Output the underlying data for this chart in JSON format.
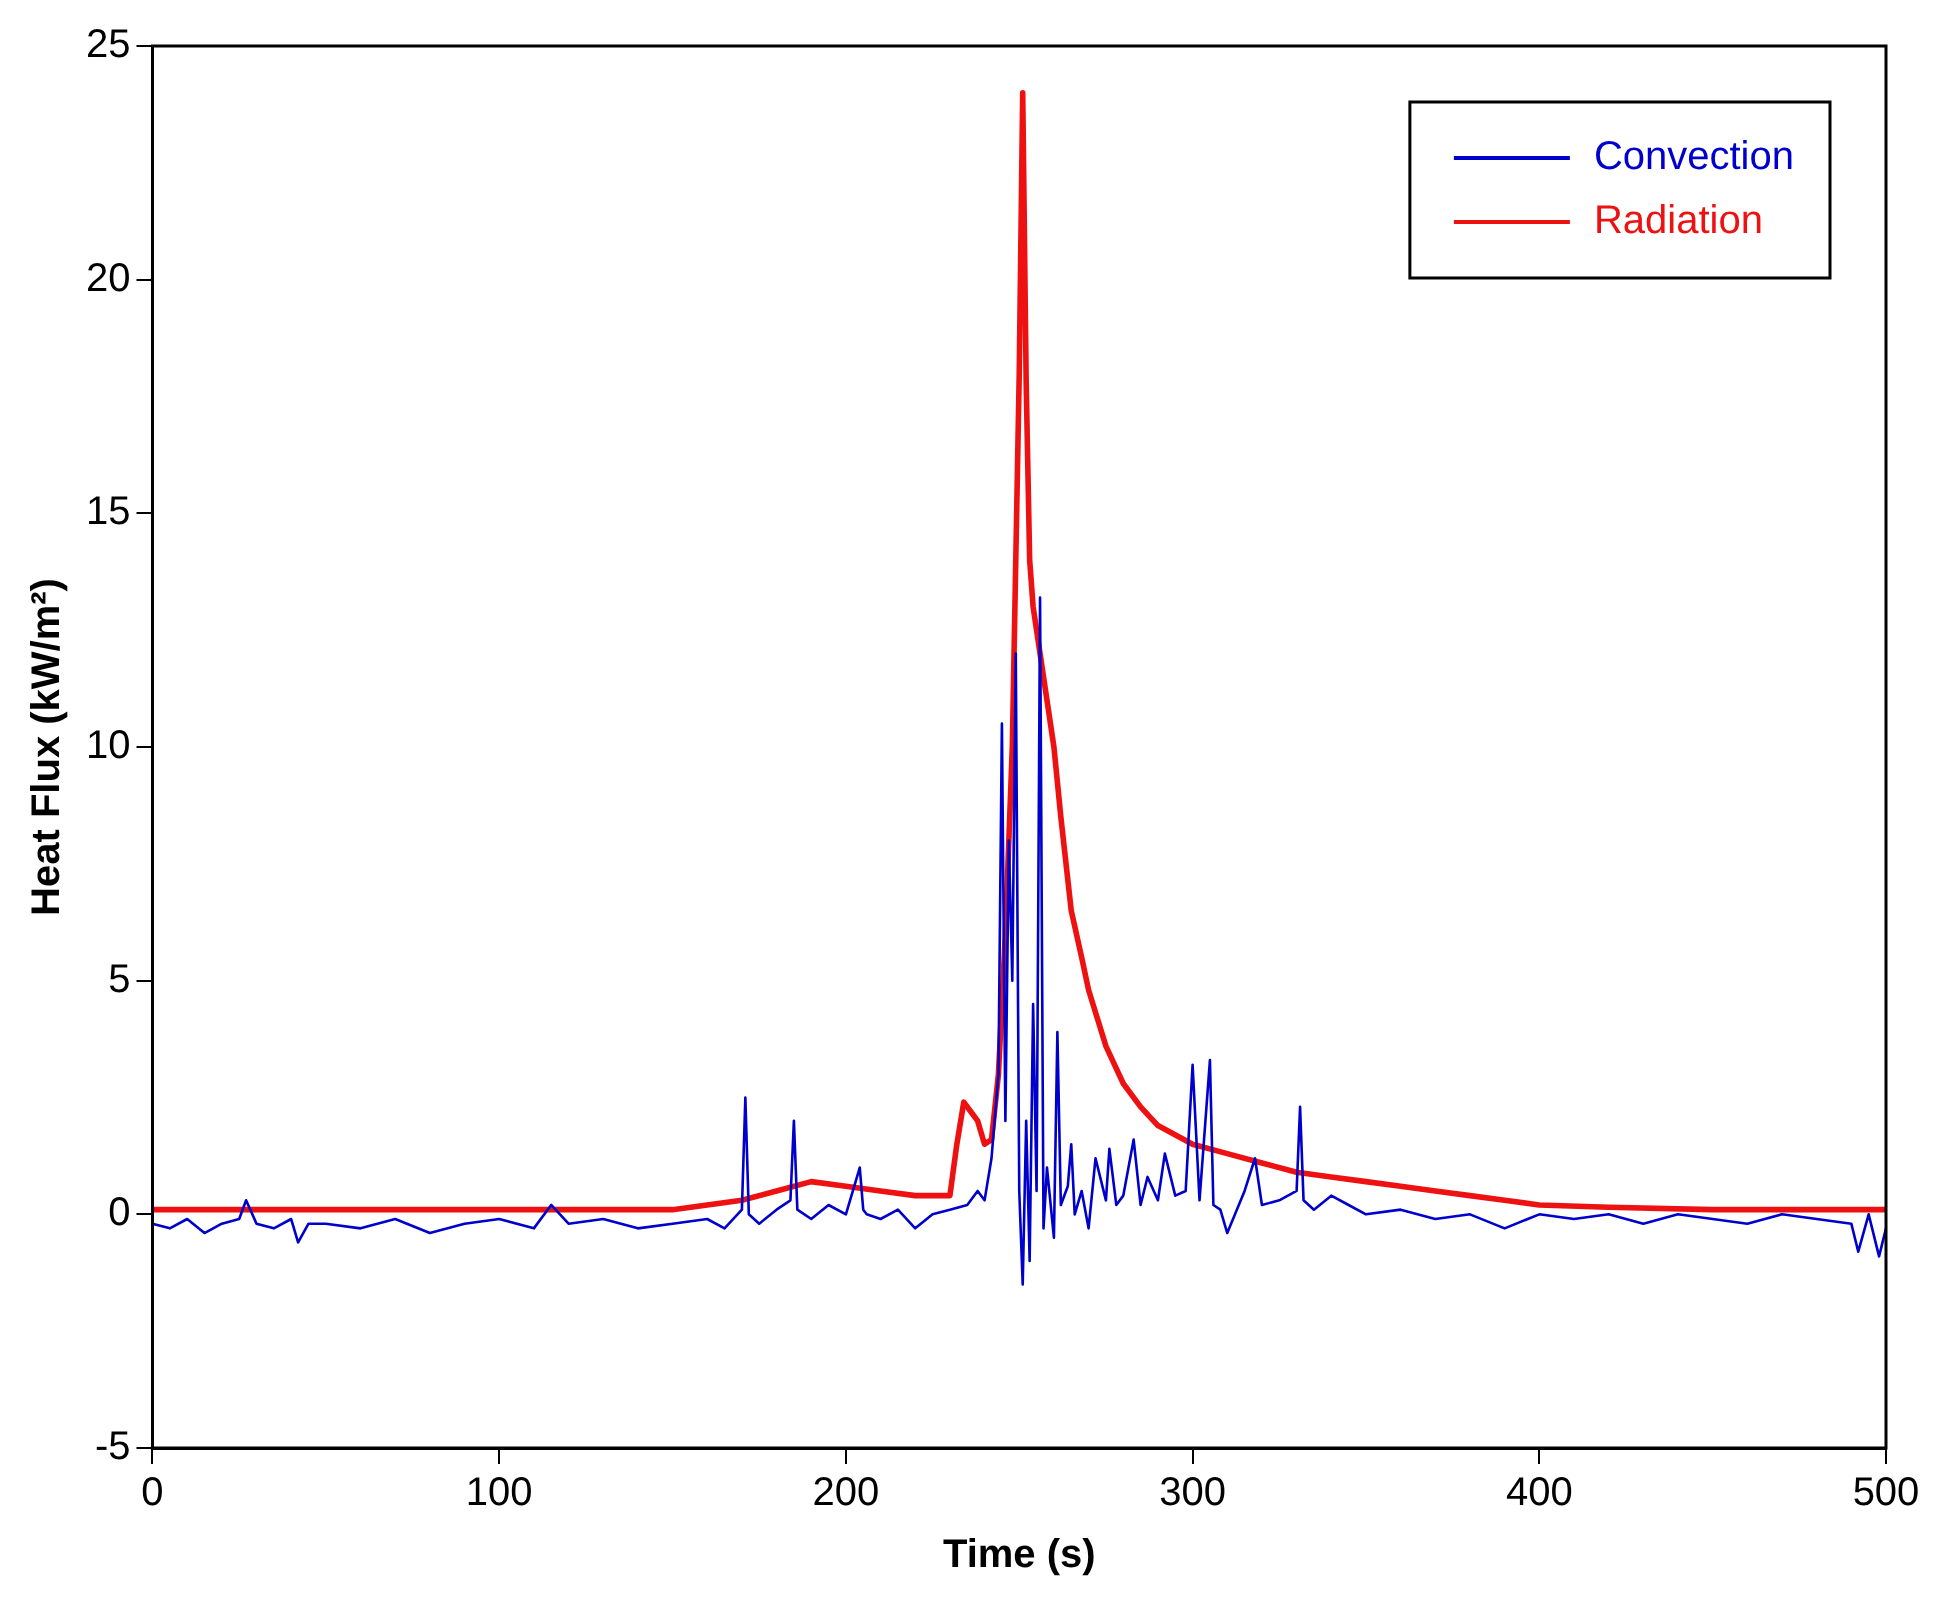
{
  "chart_data": {
    "type": "line",
    "xlabel": "Time (s)",
    "ylabel": "Heat Flux (kW/m²)",
    "xlim": [
      0,
      500
    ],
    "ylim": [
      -5,
      25
    ],
    "xticks": [
      0,
      100,
      200,
      300,
      400,
      500
    ],
    "yticks": [
      -5,
      0,
      5,
      10,
      15,
      20,
      25
    ],
    "grid": false,
    "legend": "top right",
    "marker": "none",
    "line_style": "solid",
    "series": [
      {
        "name": "Convection",
        "color": "#0000cc",
        "x": [
          0,
          5,
          10,
          15,
          20,
          25,
          27,
          30,
          35,
          40,
          42,
          45,
          50,
          60,
          70,
          80,
          90,
          100,
          110,
          115,
          120,
          130,
          140,
          150,
          160,
          165,
          170,
          171,
          172,
          175,
          180,
          184,
          185,
          186,
          190,
          195,
          200,
          204,
          205,
          206,
          210,
          215,
          220,
          225,
          230,
          235,
          238,
          240,
          242,
          244,
          245,
          246,
          247,
          248,
          249,
          250,
          251,
          252,
          253,
          254,
          255,
          256,
          257,
          258,
          260,
          261,
          262,
          264,
          265,
          266,
          268,
          270,
          272,
          275,
          276,
          278,
          280,
          283,
          285,
          287,
          290,
          292,
          295,
          298,
          300,
          302,
          305,
          306,
          308,
          310,
          315,
          318,
          320,
          325,
          330,
          331,
          332,
          335,
          340,
          345,
          350,
          360,
          370,
          380,
          390,
          400,
          410,
          420,
          430,
          440,
          450,
          460,
          470,
          480,
          490,
          492,
          495,
          498,
          500
        ],
        "values": [
          -0.2,
          -0.3,
          -0.1,
          -0.4,
          -0.2,
          -0.1,
          0.3,
          -0.2,
          -0.3,
          -0.1,
          -0.6,
          -0.2,
          -0.2,
          -0.3,
          -0.1,
          -0.4,
          -0.2,
          -0.1,
          -0.3,
          0.2,
          -0.2,
          -0.1,
          -0.3,
          -0.2,
          -0.1,
          -0.3,
          0.1,
          2.5,
          0.0,
          -0.2,
          0.1,
          0.3,
          2.0,
          0.1,
          -0.1,
          0.2,
          0.0,
          1.0,
          0.1,
          0.0,
          -0.1,
          0.1,
          -0.3,
          0.0,
          0.1,
          0.2,
          0.5,
          0.3,
          1.2,
          3.0,
          10.5,
          2.0,
          8.0,
          5.0,
          12.0,
          0.5,
          -1.5,
          2.0,
          -1.0,
          4.5,
          0.5,
          13.2,
          -0.3,
          1.0,
          -0.5,
          3.9,
          0.2,
          0.6,
          1.5,
          0.0,
          0.5,
          -0.3,
          1.2,
          0.3,
          1.4,
          0.2,
          0.4,
          1.6,
          0.2,
          0.8,
          0.3,
          1.3,
          0.4,
          0.5,
          3.2,
          0.3,
          3.3,
          0.2,
          0.1,
          -0.4,
          0.5,
          1.2,
          0.2,
          0.3,
          0.5,
          2.3,
          0.3,
          0.1,
          0.4,
          0.2,
          0.0,
          0.1,
          -0.1,
          0.0,
          -0.3,
          0.0,
          -0.1,
          0.0,
          -0.2,
          0.0,
          -0.1,
          -0.2,
          0.0,
          -0.1,
          -0.2,
          -0.8,
          0.0,
          -0.9,
          -0.3
        ]
      },
      {
        "name": "Radiation",
        "color": "#ee1111",
        "x": [
          0,
          50,
          100,
          150,
          160,
          170,
          180,
          190,
          200,
          210,
          220,
          230,
          232,
          234,
          236,
          238,
          240,
          242,
          244,
          246,
          248,
          249,
          250,
          251,
          252,
          253,
          254,
          256,
          258,
          260,
          262,
          265,
          268,
          270,
          275,
          280,
          285,
          290,
          300,
          310,
          320,
          330,
          340,
          350,
          360,
          370,
          380,
          390,
          400,
          420,
          450,
          480,
          500
        ],
        "values": [
          0.1,
          0.1,
          0.1,
          0.1,
          0.2,
          0.3,
          0.5,
          0.7,
          0.6,
          0.5,
          0.4,
          0.4,
          1.5,
          2.4,
          2.2,
          2.0,
          1.5,
          1.6,
          3.0,
          6.0,
          10.0,
          14.0,
          18.0,
          24.0,
          17.8,
          14.0,
          13.0,
          12.0,
          11.0,
          10.0,
          8.5,
          6.5,
          5.5,
          4.8,
          3.6,
          2.8,
          2.3,
          1.9,
          1.5,
          1.3,
          1.1,
          0.9,
          0.8,
          0.7,
          0.6,
          0.5,
          0.4,
          0.3,
          0.2,
          0.15,
          0.1,
          0.1,
          0.1
        ]
      }
    ]
  }
}
